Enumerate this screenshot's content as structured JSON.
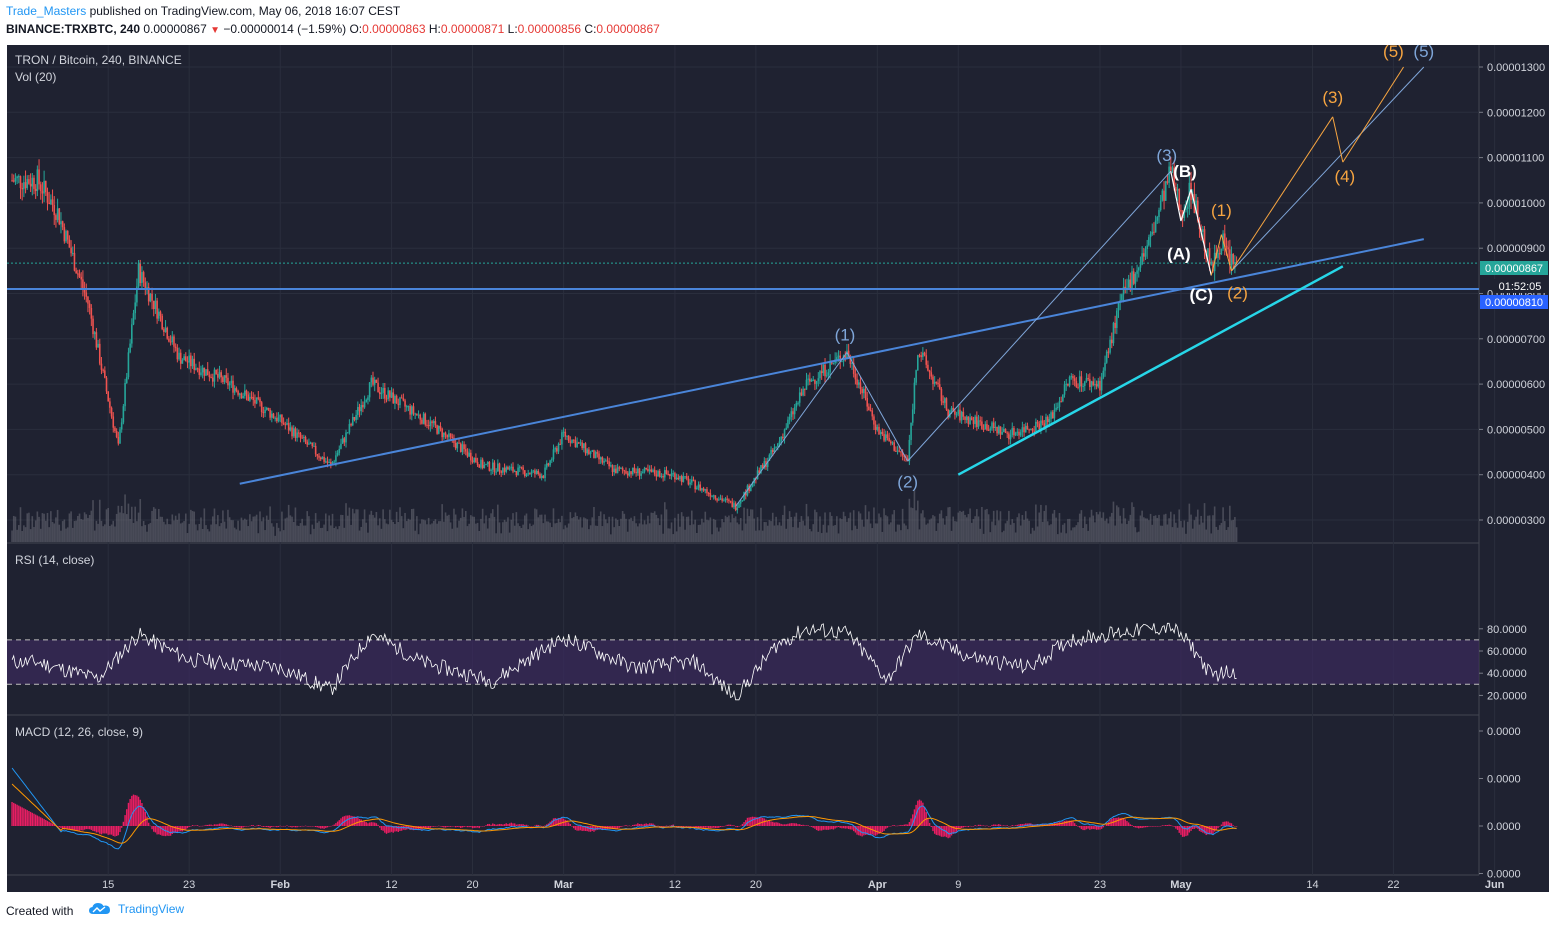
{
  "header": {
    "author": "Trade_Masters",
    "published_text": " published on TradingView.com, May 06, 2018 16:07 CEST",
    "symbol_line": "BINANCE:TRXBTC, 240",
    "last": "0.00000867",
    "change": "−0.00000014 (−1.59%)",
    "o_label": "O:",
    "o": "0.00000863",
    "h_label": "H:",
    "h": "0.00000871",
    "l_label": "L:",
    "l": "0.00000856",
    "c_label": "C:",
    "c": "0.00000867"
  },
  "pane_main": {
    "title": "TRON / Bitcoin, 240, BINANCE",
    "vol_label": "Vol (20)",
    "last_price_tag": "0.00000867",
    "countdown_tag": "01:52:05",
    "hline_tag": "0.00000810"
  },
  "pane_rsi": {
    "title": "RSI (14, close)"
  },
  "pane_macd": {
    "title": "MACD (12, 26, close, 9)"
  },
  "chart_data": [
    {
      "type": "candlestick",
      "title": "TRON / Bitcoin, 240, BINANCE",
      "x_ticks": [
        "15",
        "23",
        "Feb",
        "12",
        "20",
        "Mar",
        "12",
        "20",
        "Apr",
        "9",
        "23",
        "May",
        "14",
        "22",
        "Jun"
      ],
      "y_ticks": [
        "0.00000300",
        "0.00000400",
        "0.00000500",
        "0.00000600",
        "0.00000700",
        "0.00000800",
        "0.00000900",
        "0.00001000",
        "0.00001100",
        "0.00001200",
        "0.00001300"
      ],
      "ylim": [
        2.8e-06,
        1.34e-05
      ],
      "approx_close_path": [
        {
          "date": "2018-01-08",
          "close": 1.05e-05
        },
        {
          "date": "2018-01-10",
          "close": 9.8e-06
        },
        {
          "date": "2018-01-13",
          "close": 7.8e-06
        },
        {
          "date": "2018-01-16",
          "close": 4.6e-06
        },
        {
          "date": "2018-01-18",
          "close": 8.5e-06
        },
        {
          "date": "2018-01-22",
          "close": 6.6e-06
        },
        {
          "date": "2018-01-27",
          "close": 6e-06
        },
        {
          "date": "2018-02-01",
          "close": 5.2e-06
        },
        {
          "date": "2018-02-06",
          "close": 4.2e-06
        },
        {
          "date": "2018-02-10",
          "close": 6e-06
        },
        {
          "date": "2018-02-16",
          "close": 5.1e-06
        },
        {
          "date": "2018-02-21",
          "close": 4.2e-06
        },
        {
          "date": "2018-02-27",
          "close": 4e-06
        },
        {
          "date": "2018-03-01",
          "close": 4.9e-06
        },
        {
          "date": "2018-03-06",
          "close": 4.1e-06
        },
        {
          "date": "2018-03-12",
          "close": 4e-06
        },
        {
          "date": "2018-03-18",
          "close": 3.3e-06
        },
        {
          "date": "2018-03-22",
          "close": 4.6e-06
        },
        {
          "date": "2018-03-25",
          "close": 6e-06
        },
        {
          "date": "2018-03-29",
          "close": 6.7e-06
        },
        {
          "date": "2018-04-01",
          "close": 5e-06
        },
        {
          "date": "2018-04-04",
          "close": 4.3e-06
        },
        {
          "date": "2018-04-05",
          "close": 6.8e-06
        },
        {
          "date": "2018-04-08",
          "close": 5.4e-06
        },
        {
          "date": "2018-04-14",
          "close": 4.9e-06
        },
        {
          "date": "2018-04-18",
          "close": 5.2e-06
        },
        {
          "date": "2018-04-20",
          "close": 6.1e-06
        },
        {
          "date": "2018-04-23",
          "close": 6e-06
        },
        {
          "date": "2018-04-25",
          "close": 7.8e-06
        },
        {
          "date": "2018-04-28",
          "close": 9.2e-06
        },
        {
          "date": "2018-04-30",
          "close": 1.07e-05
        },
        {
          "date": "2018-05-01",
          "close": 9.8e-06
        },
        {
          "date": "2018-05-02",
          "close": 1.03e-05
        },
        {
          "date": "2018-05-04",
          "close": 8.5e-06
        },
        {
          "date": "2018-05-05",
          "close": 9.2e-06
        },
        {
          "date": "2018-05-06",
          "close": 8.67e-06
        }
      ],
      "horizontal_line": 8.1e-06,
      "annotations": [
        {
          "label": "(1)",
          "color": "#7fa6d9",
          "date": "2018-03-29",
          "value": 6.7e-06
        },
        {
          "label": "(2)",
          "color": "#7fa6d9",
          "date": "2018-04-04",
          "value": 4.2e-06
        },
        {
          "label": "(3)",
          "color": "#7fa6d9",
          "date": "2018-04-30",
          "value": 1.07e-05
        },
        {
          "label": "(5)",
          "color": "#7fa6d9",
          "date": "2018-05-25",
          "value": 1.3e-05
        },
        {
          "label": "(A)",
          "color": "#ffffff",
          "date": "2018-05-01",
          "value": 9.1e-06
        },
        {
          "label": "(B)",
          "color": "#ffffff",
          "date": "2018-05-02",
          "value": 1.04e-05
        },
        {
          "label": "(C)",
          "color": "#ffffff",
          "date": "2018-05-04",
          "value": 8.2e-06
        },
        {
          "label": "(1)",
          "color": "#f7a541",
          "date": "2018-05-05",
          "value": 9.4e-06
        },
        {
          "label": "(2)",
          "color": "#f7a541",
          "date": "2018-05-06",
          "value": 8.2e-06
        },
        {
          "label": "(3)",
          "color": "#f7a541",
          "date": "2018-05-16",
          "value": 1.19e-05
        },
        {
          "label": "(4)",
          "color": "#f7a541",
          "date": "2018-05-17",
          "value": 1.09e-05
        },
        {
          "label": "(5)",
          "color": "#f7a541",
          "date": "2018-05-22",
          "value": 1.3e-05
        }
      ],
      "colors": {
        "up": "#26a69a",
        "down": "#ef5350",
        "trend": "#4a85d9",
        "support": "#27d6e8",
        "wave_blue": "#7fa6d9",
        "wave_orange": "#f7a541",
        "background": "#1f2231"
      }
    },
    {
      "type": "line",
      "title": "RSI (14, close)",
      "y_ticks": [
        "20.0000",
        "40.0000",
        "60.0000",
        "80.0000"
      ],
      "ylim": [
        15,
        88
      ],
      "bands": [
        30,
        70
      ],
      "approx_values": [
        {
          "date": "2018-01-08",
          "value": 50
        },
        {
          "date": "2018-01-14",
          "value": 35
        },
        {
          "date": "2018-01-18",
          "value": 75
        },
        {
          "date": "2018-01-23",
          "value": 52
        },
        {
          "date": "2018-02-01",
          "value": 45
        },
        {
          "date": "2018-02-06",
          "value": 25
        },
        {
          "date": "2018-02-10",
          "value": 76
        },
        {
          "date": "2018-02-15",
          "value": 50
        },
        {
          "date": "2018-02-22",
          "value": 33
        },
        {
          "date": "2018-03-01",
          "value": 72
        },
        {
          "date": "2018-03-08",
          "value": 45
        },
        {
          "date": "2018-03-14",
          "value": 50
        },
        {
          "date": "2018-03-18",
          "value": 18
        },
        {
          "date": "2018-03-22",
          "value": 65
        },
        {
          "date": "2018-03-25",
          "value": 80
        },
        {
          "date": "2018-03-29",
          "value": 76
        },
        {
          "date": "2018-04-02",
          "value": 34
        },
        {
          "date": "2018-04-05",
          "value": 75
        },
        {
          "date": "2018-04-10",
          "value": 55
        },
        {
          "date": "2018-04-16",
          "value": 45
        },
        {
          "date": "2018-04-20",
          "value": 70
        },
        {
          "date": "2018-04-26",
          "value": 78
        },
        {
          "date": "2018-04-30",
          "value": 82
        },
        {
          "date": "2018-05-02",
          "value": 65
        },
        {
          "date": "2018-05-04",
          "value": 38
        },
        {
          "date": "2018-05-06",
          "value": 42
        }
      ],
      "colors": {
        "line": "#ffffff",
        "band_fill": "#3a2a5c"
      }
    },
    {
      "type": "line",
      "title": "MACD (12, 26, close, 9)",
      "y_ticks": [
        "0.0000",
        "0.0000",
        "0.0000",
        "0.0000"
      ],
      "series": [],
      "colors": {
        "macd": "#2196f3",
        "signal": "#ff9800",
        "histogram": "#e91e63"
      }
    }
  ],
  "footer": {
    "created_with": "Created with",
    "brand": "TradingView"
  }
}
